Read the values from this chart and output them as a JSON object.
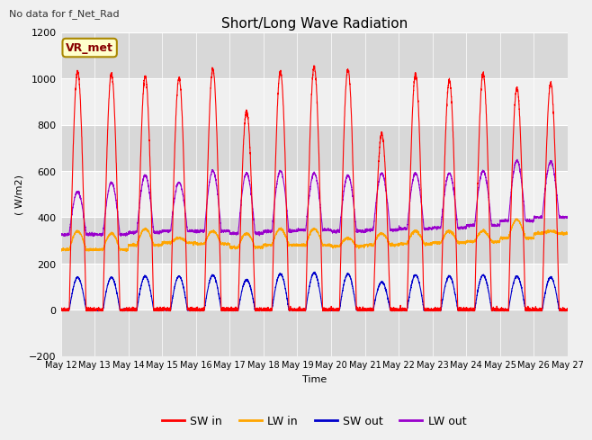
{
  "title": "Short/Long Wave Radiation",
  "top_left_text": "No data for f_Net_Rad",
  "ylabel": "( W/m2)",
  "xlabel": "Time",
  "station_label": "VR_met",
  "ylim": [
    -200,
    1200
  ],
  "yticks": [
    -200,
    0,
    200,
    400,
    600,
    800,
    1000,
    1200
  ],
  "xtick_labels": [
    "May 12",
    "May 13",
    "May 14",
    "May 15",
    "May 16",
    "May 17",
    "May 18",
    "May 19",
    "May 20",
    "May 21",
    "May 22",
    "May 23",
    "May 24",
    "May 25",
    "May 26",
    "May 27"
  ],
  "colors": {
    "SW_in": "#ff0000",
    "LW_in": "#ffa500",
    "SW_out": "#0000cc",
    "LW_out": "#9900cc"
  },
  "legend_labels": [
    "SW in",
    "LW in",
    "SW out",
    "LW out"
  ],
  "bg_color": "#f0f0f0",
  "plot_bg_color": "#ffffff",
  "grid_color_light": "#d8d8d8",
  "grid_color_dark": "#c0c0c0",
  "band_color_dark": "#d8d8d8",
  "band_color_light": "#f0f0f0",
  "n_days": 15,
  "peaks_SW_in": [
    1030,
    1020,
    1010,
    1000,
    1040,
    860,
    1030,
    1050,
    1040,
    760,
    1020,
    990,
    1020,
    960,
    980
  ],
  "peaks_LW_in": [
    340,
    330,
    350,
    310,
    340,
    330,
    350,
    350,
    310,
    330,
    340,
    340,
    340,
    390,
    340
  ],
  "peaks_SW_out": [
    140,
    140,
    145,
    145,
    150,
    130,
    155,
    160,
    155,
    120,
    150,
    145,
    150,
    145,
    140
  ],
  "peaks_LW_out": [
    510,
    550,
    580,
    550,
    600,
    590,
    600,
    590,
    580,
    590,
    590,
    590,
    600,
    645,
    640
  ],
  "night_LW_in": [
    260,
    260,
    280,
    290,
    285,
    270,
    280,
    280,
    275,
    280,
    285,
    290,
    295,
    310,
    330
  ],
  "night_LW_out": [
    325,
    325,
    335,
    340,
    340,
    330,
    340,
    345,
    340,
    345,
    350,
    355,
    365,
    385,
    400
  ]
}
